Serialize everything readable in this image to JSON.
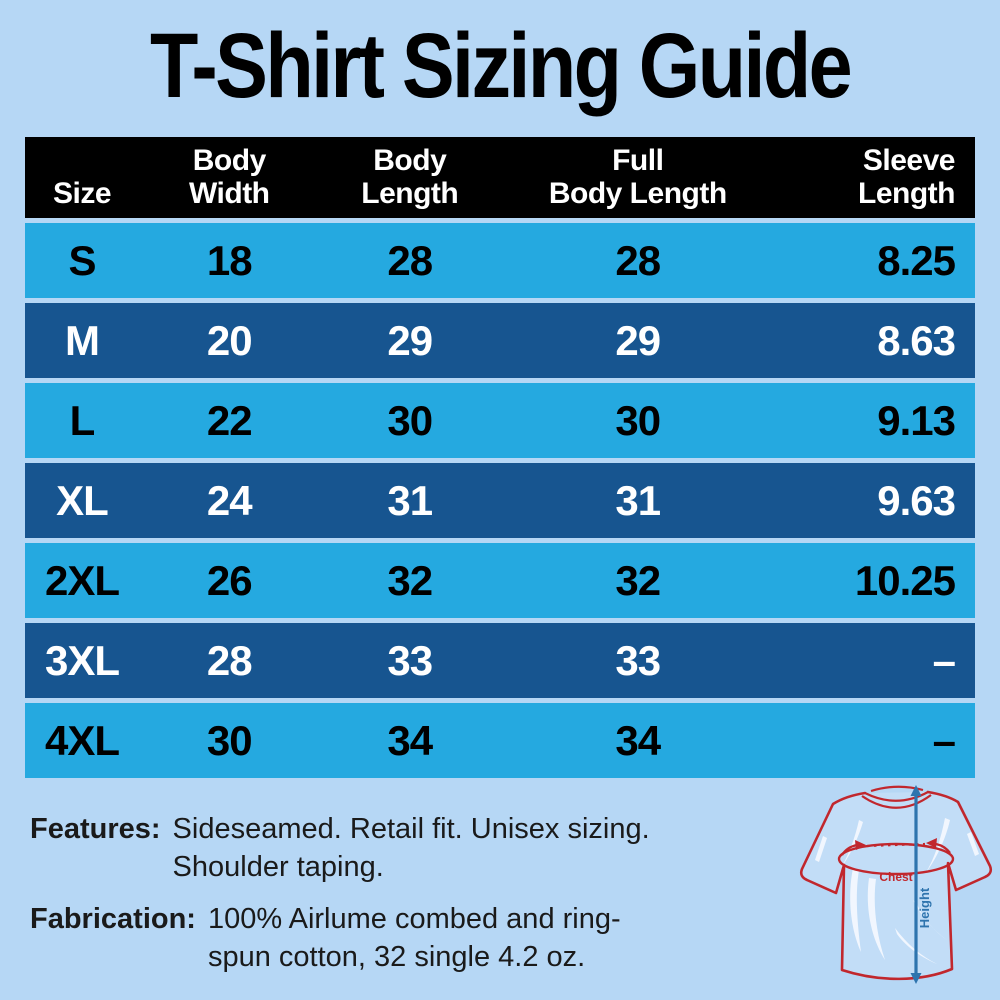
{
  "title": "T-Shirt Sizing Guide",
  "colors": {
    "background": "#b6d7f5",
    "header_bg": "#000000",
    "row_light": "#25a9e0",
    "row_dark": "#175590",
    "accent_red": "#c1272d",
    "accent_blue": "#2e74ae"
  },
  "table": {
    "headers": [
      "Size",
      "Body\nWidth",
      "Body\nLength",
      "Full\nBody Length",
      "Sleeve\nLength"
    ],
    "rows": [
      {
        "size": "S",
        "body_width": "18",
        "body_length": "28",
        "full_body_length": "28",
        "sleeve_length": "8.25",
        "variant": "light"
      },
      {
        "size": "M",
        "body_width": "20",
        "body_length": "29",
        "full_body_length": "29",
        "sleeve_length": "8.63",
        "variant": "dark"
      },
      {
        "size": "L",
        "body_width": "22",
        "body_length": "30",
        "full_body_length": "30",
        "sleeve_length": "9.13",
        "variant": "light"
      },
      {
        "size": "XL",
        "body_width": "24",
        "body_length": "31",
        "full_body_length": "31",
        "sleeve_length": "9.63",
        "variant": "dark"
      },
      {
        "size": "2XL",
        "body_width": "26",
        "body_length": "32",
        "full_body_length": "32",
        "sleeve_length": "10.25",
        "variant": "light"
      },
      {
        "size": "3XL",
        "body_width": "28",
        "body_length": "33",
        "full_body_length": "33",
        "sleeve_length": "–",
        "variant": "dark"
      },
      {
        "size": "4XL",
        "body_width": "30",
        "body_length": "34",
        "full_body_length": "34",
        "sleeve_length": "–",
        "variant": "light"
      }
    ]
  },
  "features": {
    "label": "Features:",
    "text": "Sideseamed. Retail fit. Unisex sizing.\nShoulder taping."
  },
  "fabrication": {
    "label": "Fabrication:",
    "text": "100% Airlume combed and ring-\nspun cotton, 32 single 4.2 oz."
  },
  "diagram": {
    "chest_label": "Chest",
    "height_label": "Height"
  },
  "chart_data": {
    "type": "table",
    "title": "T-Shirt Sizing Guide",
    "columns": [
      "Size",
      "Body Width",
      "Body Length",
      "Full Body Length",
      "Sleeve Length"
    ],
    "rows": [
      [
        "S",
        18,
        28,
        28,
        8.25
      ],
      [
        "M",
        20,
        29,
        29,
        8.63
      ],
      [
        "L",
        22,
        30,
        30,
        9.13
      ],
      [
        "XL",
        24,
        31,
        31,
        9.63
      ],
      [
        "2XL",
        26,
        32,
        32,
        10.25
      ],
      [
        "3XL",
        28,
        33,
        33,
        null
      ],
      [
        "4XL",
        30,
        34,
        34,
        null
      ]
    ],
    "notes": [
      "Features: Sideseamed. Retail fit. Unisex sizing. Shoulder taping.",
      "Fabrication: 100% Airlume combed and ring-spun cotton, 32 single 4.2 oz."
    ]
  }
}
